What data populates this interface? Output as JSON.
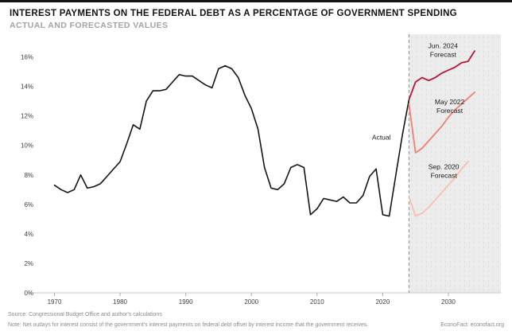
{
  "header": {
    "title": "INTEREST PAYMENTS ON THE FEDERAL DEBT AS A PERCENTAGE OF GOVERNMENT SPENDING",
    "subtitle": "ACTUAL AND FORECASTED VALUES"
  },
  "footer": {
    "source": "Source: Congressional Budget Office and author's calculations",
    "note": "Note: Net outlays for interest consist of the government's interest payments on federal debt offset by interest income that the government receives.",
    "brand": "EconoFact: econofact.org"
  },
  "chart_data": {
    "type": "line",
    "title": "Interest Payments on the Federal Debt as a Percentage of Government Spending",
    "subtitle": "Actual and Forecasted Values",
    "xlabel": "",
    "ylabel": "",
    "xlim": [
      1968,
      2038
    ],
    "ylim": [
      0,
      17
    ],
    "xticks": [
      1970,
      1980,
      1990,
      2000,
      2010,
      2020,
      2030
    ],
    "yticks": [
      0,
      2,
      4,
      6,
      8,
      10,
      12,
      14,
      16
    ],
    "ytick_suffix": "%",
    "grid": false,
    "legend_position": "inline-annotations",
    "forecast_region": {
      "start": 2024,
      "fill": "#ececec",
      "dot_color": "#d7d7d7",
      "divider_color": "#8c8c8c"
    },
    "series": [
      {
        "id": "actual",
        "name": "Actual",
        "color": "#141414",
        "width": 1.6,
        "x": [
          1970,
          1971,
          1972,
          1973,
          1974,
          1975,
          1976,
          1977,
          1978,
          1979,
          1980,
          1981,
          1982,
          1983,
          1984,
          1985,
          1986,
          1987,
          1988,
          1989,
          1990,
          1991,
          1992,
          1993,
          1994,
          1995,
          1996,
          1997,
          1998,
          1999,
          2000,
          2001,
          2002,
          2003,
          2004,
          2005,
          2006,
          2007,
          2008,
          2009,
          2010,
          2011,
          2012,
          2013,
          2014,
          2015,
          2016,
          2017,
          2018,
          2019,
          2020,
          2021,
          2022,
          2023,
          2024
        ],
        "y": [
          7.3,
          7.0,
          6.8,
          7.0,
          8.0,
          7.1,
          7.2,
          7.4,
          7.9,
          8.4,
          8.9,
          10.1,
          11.4,
          11.1,
          13.0,
          13.7,
          13.7,
          13.8,
          14.3,
          14.8,
          14.7,
          14.7,
          14.4,
          14.1,
          13.9,
          15.2,
          15.4,
          15.2,
          14.6,
          13.4,
          12.5,
          11.1,
          8.5,
          7.1,
          7.0,
          7.4,
          8.5,
          8.7,
          8.5,
          5.3,
          5.7,
          6.4,
          6.3,
          6.2,
          6.5,
          6.1,
          6.1,
          6.6,
          7.9,
          8.4,
          5.3,
          5.2,
          8.0,
          10.7,
          13.1
        ]
      },
      {
        "id": "jun-2024",
        "name": "Jun. 2024 Forecast",
        "color": "#b5183c",
        "width": 1.8,
        "x": [
          2024,
          2025,
          2026,
          2027,
          2028,
          2029,
          2030,
          2031,
          2032,
          2033,
          2034
        ],
        "y": [
          13.1,
          14.3,
          14.6,
          14.4,
          14.6,
          14.9,
          15.1,
          15.3,
          15.6,
          15.7,
          16.4
        ]
      },
      {
        "id": "may-2022",
        "name": "May 2022 Forecast",
        "color": "#f0806b",
        "width": 1.8,
        "x": [
          2024,
          2025,
          2026,
          2027,
          2028,
          2029,
          2030,
          2031,
          2032,
          2033,
          2034
        ],
        "y": [
          12.8,
          9.5,
          9.8,
          10.3,
          10.8,
          11.3,
          11.9,
          12.4,
          12.8,
          13.2,
          13.6
        ]
      },
      {
        "id": "sep-2020",
        "name": "Sep. 2020 Forecast",
        "color": "#f8c0ab",
        "width": 1.8,
        "x": [
          2024,
          2025,
          2026,
          2027,
          2028,
          2029,
          2030,
          2031,
          2032,
          2033
        ],
        "y": [
          6.5,
          5.2,
          5.4,
          5.8,
          6.3,
          6.8,
          7.3,
          7.8,
          8.4,
          8.9
        ]
      }
    ],
    "annotations": [
      {
        "id": "actual",
        "lines": [
          "Actual"
        ],
        "x": 2019.8,
        "y": 10.4,
        "color": "#141414"
      },
      {
        "id": "jun-2024",
        "lines": [
          "Jun. 2024",
          "Forecast"
        ],
        "x": 2029.2,
        "y": 16.6,
        "color": "#141414"
      },
      {
        "id": "may-2022",
        "lines": [
          "May 2022",
          "Forecast"
        ],
        "x": 2030.2,
        "y": 12.8,
        "color": "#141414"
      },
      {
        "id": "sep-2020",
        "lines": [
          "Sep. 2020",
          "Forecast"
        ],
        "x": 2029.3,
        "y": 8.4,
        "color": "#141414"
      }
    ]
  }
}
